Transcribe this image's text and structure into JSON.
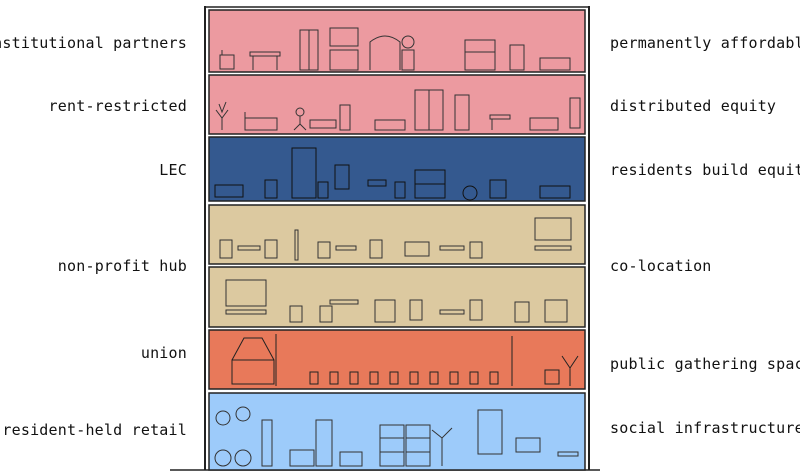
{
  "colors": {
    "residential": "#ec9aa0",
    "lec": "#34598f",
    "nonprofit": "#dcc9a0",
    "union": "#e8795a",
    "retail": "#9dcbfa",
    "outline": "#222222"
  },
  "floors": [
    {
      "id": "floor-7",
      "use": "residential",
      "left_label": "institutional partners",
      "right_label": "permanently affordable"
    },
    {
      "id": "floor-6",
      "use": "residential",
      "left_label": "rent-restricted",
      "right_label": "distributed equity"
    },
    {
      "id": "floor-5",
      "use": "lec",
      "left_label": "LEC",
      "right_label": "residents build equity"
    },
    {
      "id": "floor-4-3",
      "use": "nonprofit",
      "left_label": "non-profit hub",
      "right_label": "co-location"
    },
    {
      "id": "floor-2",
      "use": "union",
      "left_label": "union",
      "right_label": "public gathering space"
    },
    {
      "id": "floor-1",
      "use": "retail",
      "left_label": "resident-held retail",
      "right_label": "social infrastructure"
    }
  ]
}
